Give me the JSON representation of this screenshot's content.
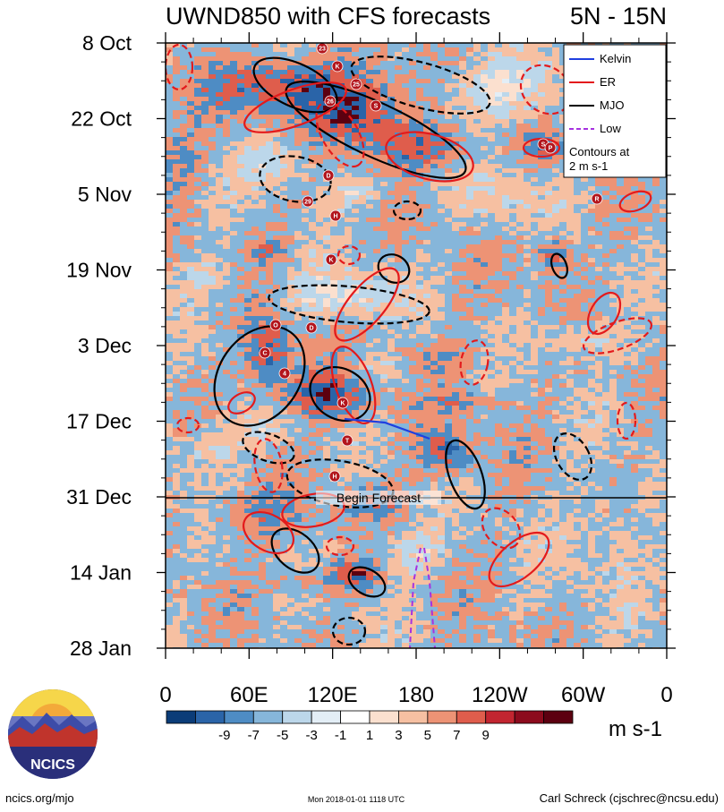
{
  "chart_data": {
    "type": "heatmap",
    "title": "UWND850 with CFS forecasts",
    "region": "5N - 15N",
    "y_tick_labels": [
      "8 Oct",
      "22 Oct",
      "5 Nov",
      "19 Nov",
      "3 Dec",
      "17 Dec",
      "31 Dec",
      "14 Jan",
      "28 Jan"
    ],
    "x_tick_labels": [
      "0",
      "60E",
      "120E",
      "180",
      "120W",
      "60W",
      "0"
    ],
    "x_range_deg_east": [
      0,
      360
    ],
    "colorbar_labels": [
      "-9",
      "-7",
      "-5",
      "-3",
      "-1",
      "1",
      "3",
      "5",
      "7",
      "9"
    ],
    "colorbar_colors": [
      "#0b3c78",
      "#2a64a8",
      "#4e8cc4",
      "#86b6da",
      "#bcd7ea",
      "#e3eef6",
      "#ffffff",
      "#fbe0cf",
      "#f6c0a2",
      "#ed9375",
      "#df5d4c",
      "#c22530",
      "#8c0b1d",
      "#5c0010"
    ],
    "units": "m s-1",
    "forecast_start_label": "Begin Forecast",
    "legend": {
      "entries": [
        {
          "label": "Kelvin",
          "color": "#1f3fe0",
          "style": "solid"
        },
        {
          "label": "ER",
          "color": "#e31a1c",
          "style": "solid"
        },
        {
          "label": "MJO",
          "color": "#000000",
          "style": "solid"
        },
        {
          "label": "Low",
          "color": "#a632e0",
          "style": "dashed"
        }
      ],
      "note_line1": "Contours at",
      "note_line2": "2 m s-1"
    },
    "storm_labels": [
      "23",
      "K",
      "25",
      "26",
      "S",
      "S",
      "P",
      "D",
      "29",
      "H",
      "R",
      "K",
      "O",
      "D",
      "C",
      "4",
      "K",
      "T",
      "H"
    ]
  },
  "footer": {
    "logo_text": "NCICS",
    "site": "ncics.org/mjo",
    "timestamp": "Mon 2018-01-01 1118 UTC",
    "author": "Carl Schreck (cjschrec@ncsu.edu)"
  }
}
